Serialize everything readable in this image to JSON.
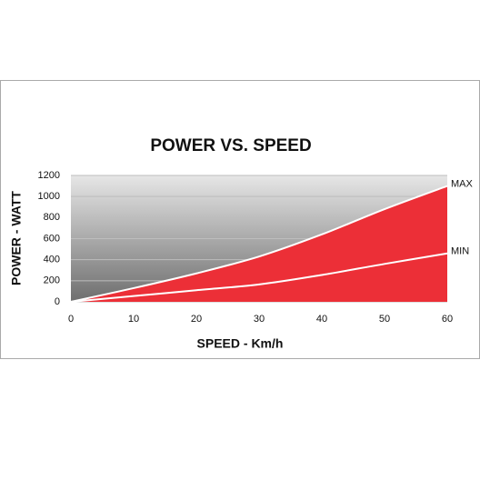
{
  "chart_data": {
    "type": "area",
    "title": "POWER VS. SPEED",
    "x_label": "SPEED - Km/h",
    "y_label": "POWER - WATT",
    "x": [
      0,
      10,
      20,
      30,
      40,
      50,
      60
    ],
    "series": [
      {
        "name": "MAX",
        "values": [
          0,
          130,
          270,
          430,
          640,
          880,
          1100
        ]
      },
      {
        "name": "MIN",
        "values": [
          0,
          55,
          110,
          165,
          255,
          360,
          460
        ]
      }
    ],
    "color": "#ec2f37",
    "line_color": "#ffffff",
    "xlim": [
      0,
      60
    ],
    "xticks": [
      0,
      10,
      20,
      30,
      40,
      50,
      60
    ],
    "ylim": [
      0,
      1200
    ],
    "yticks": [
      0,
      200,
      400,
      600,
      800,
      1000,
      1200
    ],
    "grid": true
  }
}
